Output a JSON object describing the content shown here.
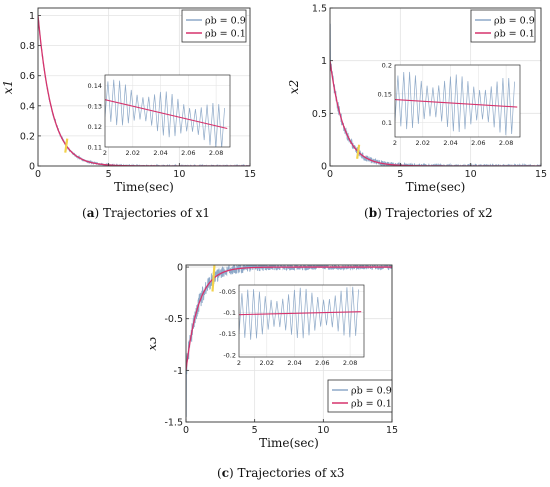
{
  "chart_data": [
    {
      "type": "line",
      "tag": "a",
      "caption": "Trajectories of x1",
      "ylabel": "x1",
      "xlabel": "Time(sec)",
      "xlim": [
        0,
        15
      ],
      "ylim": [
        0,
        1.05
      ],
      "xticks": [
        0,
        5,
        10,
        15
      ],
      "yticks": [
        0,
        0.2,
        0.4,
        0.6,
        0.8,
        1
      ],
      "grid": true,
      "legend": {
        "position": "top-right"
      },
      "series": [
        {
          "name": "ρb = 0.9",
          "color": "#8ea9c8",
          "x0": 0,
          "y0": 1.0,
          "decay_rate": 1.0,
          "noise": 0.015
        },
        {
          "name": "ρb = 0.1",
          "color": "#d6336c",
          "x0": 0,
          "y0": 1.0,
          "decay_rate": 1.0
        }
      ],
      "inset": {
        "xlim": [
          2,
          2.09
        ],
        "ylim": [
          0.11,
          0.145
        ],
        "xticks": [
          2,
          2.02,
          2.04,
          2.06,
          2.08
        ],
        "yticks": [
          0.11,
          0.12,
          0.13,
          0.14
        ],
        "series": [
          {
            "name": "ρb = 0.9",
            "color": "#8ea9c8",
            "x": [
              2,
              2.088
            ],
            "y": [
              0.133,
              0.119
            ],
            "osc_amplitude": 0.011,
            "osc_period": 0.0042
          },
          {
            "name": "ρb = 0.1",
            "color": "#d6336c",
            "x": [
              2,
              2.088
            ],
            "y": [
              0.133,
              0.119
            ]
          }
        ]
      }
    },
    {
      "type": "line",
      "tag": "b",
      "caption": "Trajectories of x2",
      "ylabel": "x2",
      "xlabel": "Time(sec)",
      "xlim": [
        0,
        15
      ],
      "ylim": [
        0,
        1.5
      ],
      "xticks": [
        0,
        5,
        10,
        15
      ],
      "yticks": [
        0,
        0.5,
        1,
        1.5
      ],
      "grid": true,
      "legend": {
        "position": "top-right"
      },
      "series": [
        {
          "name": "ρb = 0.9",
          "color": "#8ea9c8",
          "x0": 0,
          "y0": 1.0,
          "decay_rate": 1.0,
          "noise": 0.05,
          "spike": 1.35
        },
        {
          "name": "ρb = 0.1",
          "color": "#d6336c",
          "x0": 0,
          "y0": 1.0,
          "decay_rate": 1.0
        }
      ],
      "inset": {
        "xlim": [
          2,
          2.09
        ],
        "ylim": [
          0.075,
          0.2
        ],
        "xticks": [
          2,
          2.02,
          2.04,
          2.06,
          2.08
        ],
        "yticks": [
          0.1,
          0.15,
          0.2
        ],
        "series": [
          {
            "name": "ρb = 0.9",
            "color": "#8ea9c8",
            "x": [
              2,
              2.088
            ],
            "y": [
              0.14,
              0.127
            ],
            "osc_amplitude": 0.05,
            "osc_period": 0.0042
          },
          {
            "name": "ρb = 0.1",
            "color": "#d6336c",
            "x": [
              2,
              2.088
            ],
            "y": [
              0.14,
              0.127
            ]
          }
        ]
      }
    },
    {
      "type": "line",
      "tag": "c",
      "caption": "Trajectories of x3",
      "ylabel": "x3",
      "xlabel": "Time(sec)",
      "xlim": [
        0,
        15
      ],
      "ylim": [
        -1.5,
        0.02
      ],
      "xticks": [
        0,
        5,
        10,
        15
      ],
      "yticks": [
        -1.5,
        -1,
        -0.5,
        0
      ],
      "grid": true,
      "legend": {
        "position": "bottom-right"
      },
      "series": [
        {
          "name": "ρb = 0.9",
          "color": "#8ea9c8",
          "x0": 0,
          "y0": -1.0,
          "decay_rate": 1.1,
          "noise": 0.09,
          "spike": -1.45
        },
        {
          "name": "ρb = 0.1",
          "color": "#d6336c",
          "x0": 0,
          "y0": -1.0,
          "decay_rate": 1.1
        }
      ],
      "inset": {
        "xlim": [
          2,
          2.09
        ],
        "ylim": [
          -0.205,
          -0.035
        ],
        "xticks": [
          2,
          2.02,
          2.04,
          2.06,
          2.08
        ],
        "yticks": [
          -0.2,
          -0.15,
          -0.1,
          -0.05
        ],
        "series": [
          {
            "name": "ρb = 0.9",
            "color": "#8ea9c8",
            "x": [
              2,
              2.088
            ],
            "y": [
              -0.105,
              -0.098
            ],
            "osc_amplitude": 0.06,
            "osc_period": 0.0042
          },
          {
            "name": "ρb = 0.1",
            "color": "#d6336c",
            "x": [
              2,
              2.088
            ],
            "y": [
              -0.105,
              -0.098
            ]
          }
        ]
      }
    }
  ]
}
